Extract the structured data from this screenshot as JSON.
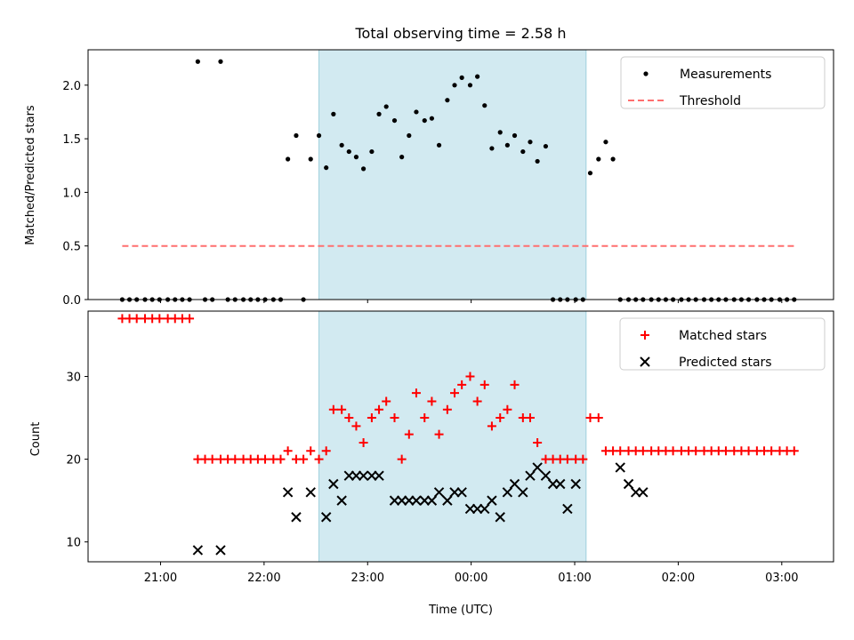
{
  "chart_data": [
    {
      "type": "scatter",
      "title": "Total observing time = 2.58 h",
      "xlabel": "",
      "ylabel": "Matched/Predicted stars",
      "xlim_hours": [
        20.3,
        27.5
      ],
      "ylim": [
        0,
        2.33
      ],
      "yticks": [
        0.0,
        0.5,
        1.0,
        1.5,
        2.0
      ],
      "ytick_labels": [
        "0.0",
        "0.5",
        "1.0",
        "1.5",
        "2.0"
      ],
      "shaded_span_hours": [
        22.53,
        25.11
      ],
      "shade_color": "#add8e6",
      "threshold": {
        "name": "Threshold",
        "y": 0.5,
        "x_range_hours": [
          20.63,
          27.12
        ],
        "color": "#ff6f6f"
      },
      "legend": {
        "position": "top-right",
        "entries": [
          "Measurements",
          "Threshold"
        ]
      },
      "series": [
        {
          "name": "Measurements",
          "color": "#000000",
          "marker": "dot",
          "x_hours": [
            20.63,
            20.7,
            20.77,
            20.85,
            20.92,
            20.99,
            21.07,
            21.14,
            21.21,
            21.28,
            21.36,
            21.43,
            21.5,
            21.58,
            21.65,
            21.72,
            21.8,
            21.87,
            21.94,
            22.01,
            22.09,
            22.16,
            22.23,
            22.31,
            22.38,
            22.45,
            22.53,
            22.6,
            22.67,
            22.75,
            22.82,
            22.89,
            22.96,
            23.04,
            23.11,
            23.18,
            23.26,
            23.33,
            23.4,
            23.47,
            23.55,
            23.62,
            23.69,
            23.77,
            23.84,
            23.91,
            23.99,
            24.06,
            24.13,
            24.2,
            24.28,
            24.35,
            24.42,
            24.5,
            24.57,
            24.64,
            24.72,
            24.79,
            24.86,
            24.93,
            25.01,
            25.08,
            25.15,
            25.23,
            25.3,
            25.37,
            25.44,
            25.52,
            25.59,
            25.66,
            25.74,
            25.81,
            25.88,
            25.95,
            26.03,
            26.1,
            26.17,
            26.25,
            26.32,
            26.39,
            26.46,
            26.54,
            26.61,
            26.68,
            26.76,
            26.83,
            26.9,
            26.98,
            27.05,
            27.12
          ],
          "y": [
            0,
            0,
            0,
            0,
            0,
            0,
            0,
            0,
            0,
            0,
            2.22,
            0,
            0,
            2.22,
            0,
            0,
            0,
            0,
            0,
            0,
            0,
            0,
            1.31,
            1.53,
            0,
            1.31,
            1.53,
            1.23,
            1.73,
            1.44,
            1.38,
            1.33,
            1.22,
            1.38,
            1.73,
            1.8,
            1.67,
            1.33,
            1.53,
            1.75,
            1.67,
            1.69,
            1.44,
            1.86,
            2.0,
            2.07,
            2.0,
            2.08,
            1.81,
            1.41,
            1.56,
            1.44,
            1.53,
            1.38,
            1.47,
            1.29,
            1.43,
            0,
            0,
            0,
            0,
            0,
            1.18,
            1.31,
            1.47,
            1.31,
            0,
            0,
            0,
            0,
            0,
            0,
            0,
            0,
            0,
            0,
            0,
            0,
            0,
            0,
            0,
            0,
            0,
            0,
            0,
            0,
            0,
            0,
            0,
            0
          ]
        }
      ]
    },
    {
      "type": "scatter",
      "title": "",
      "xlabel": "Time (UTC)",
      "ylabel": "Count",
      "xlim_hours": [
        20.3,
        27.5
      ],
      "ylim": [
        7.6,
        37.9
      ],
      "yticks": [
        10,
        20,
        30
      ],
      "ytick_labels": [
        "10",
        "20",
        "30"
      ],
      "xticks_hours": [
        21,
        22,
        23,
        24,
        25,
        26,
        27
      ],
      "xtick_labels": [
        "21:00",
        "22:00",
        "23:00",
        "00:00",
        "01:00",
        "02:00",
        "03:00"
      ],
      "shaded_span_hours": [
        22.53,
        25.11
      ],
      "shade_color": "#add8e6",
      "legend": {
        "position": "top-right",
        "entries": [
          "Matched stars",
          "Predicted stars"
        ]
      },
      "series": [
        {
          "name": "Matched stars",
          "color": "#ff0000",
          "marker": "plus",
          "x_hours": [
            20.63,
            20.7,
            20.77,
            20.85,
            20.92,
            20.99,
            21.07,
            21.14,
            21.21,
            21.28,
            21.36,
            21.43,
            21.5,
            21.58,
            21.65,
            21.72,
            21.8,
            21.87,
            21.94,
            22.01,
            22.09,
            22.16,
            22.23,
            22.31,
            22.38,
            22.45,
            22.53,
            22.6,
            22.67,
            22.75,
            22.82,
            22.89,
            22.96,
            23.04,
            23.11,
            23.18,
            23.26,
            23.33,
            23.4,
            23.47,
            23.55,
            23.62,
            23.69,
            23.77,
            23.84,
            23.91,
            23.99,
            24.06,
            24.13,
            24.2,
            24.28,
            24.35,
            24.42,
            24.5,
            24.57,
            24.64,
            24.72,
            24.79,
            24.86,
            24.93,
            25.01,
            25.08,
            25.15,
            25.23,
            25.3,
            25.37,
            25.44,
            25.52,
            25.59,
            25.66,
            25.74,
            25.81,
            25.88,
            25.95,
            26.03,
            26.1,
            26.17,
            26.25,
            26.32,
            26.39,
            26.46,
            26.54,
            26.61,
            26.68,
            26.76,
            26.83,
            26.9,
            26.98,
            27.05,
            27.12
          ],
          "y": [
            37,
            37,
            37,
            37,
            37,
            37,
            37,
            37,
            37,
            37,
            20,
            20,
            20,
            20,
            20,
            20,
            20,
            20,
            20,
            20,
            20,
            20,
            21,
            20,
            20,
            21,
            20,
            21,
            26,
            26,
            25,
            24,
            22,
            25,
            26,
            27,
            25,
            20,
            23,
            28,
            25,
            27,
            23,
            26,
            28,
            29,
            30,
            27,
            29,
            24,
            25,
            26,
            29,
            25,
            25,
            22,
            20,
            20,
            20,
            20,
            20,
            20,
            25,
            25,
            21,
            21,
            21,
            21,
            21,
            21,
            21,
            21,
            21,
            21,
            21,
            21,
            21,
            21,
            21,
            21,
            21,
            21,
            21,
            21,
            21,
            21,
            21,
            21,
            21,
            21
          ]
        },
        {
          "name": "Predicted stars",
          "color": "#000000",
          "marker": "x",
          "x_hours": [
            21.36,
            21.58,
            22.23,
            22.31,
            22.45,
            22.6,
            22.67,
            22.75,
            22.82,
            22.89,
            22.96,
            23.04,
            23.11,
            23.26,
            23.33,
            23.4,
            23.47,
            23.55,
            23.62,
            23.69,
            23.77,
            23.84,
            23.91,
            23.99,
            24.06,
            24.13,
            24.2,
            24.28,
            24.35,
            24.42,
            24.5,
            24.57,
            24.64,
            24.72,
            24.79,
            24.86,
            24.93,
            25.01,
            25.44,
            25.52,
            25.59,
            25.66
          ],
          "y": [
            9,
            9,
            16,
            13,
            16,
            13,
            17,
            15,
            18,
            18,
            18,
            18,
            18,
            15,
            15,
            15,
            15,
            15,
            15,
            16,
            15,
            16,
            16,
            14,
            14,
            14,
            15,
            13,
            16,
            17,
            16,
            18,
            19,
            18,
            17,
            17,
            14,
            17,
            19,
            17,
            16,
            16
          ]
        }
      ]
    }
  ]
}
